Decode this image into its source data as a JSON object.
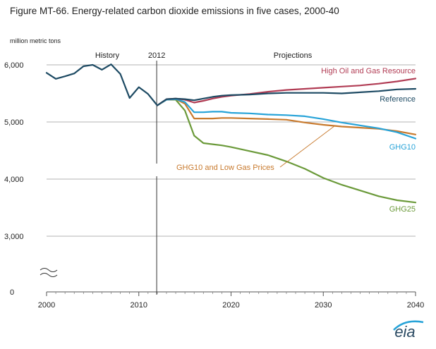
{
  "title": "Figure MT-66. Energy-related carbon dioxide emissions in five cases, 2000-40",
  "logo_text": "eia",
  "chart_data": {
    "type": "line",
    "ylabel": "million metric tons",
    "xlim": [
      2000,
      2040
    ],
    "ylim": [
      0,
      6000
    ],
    "x_ticks": [
      2000,
      2010,
      2020,
      2030,
      2040
    ],
    "y_ticks": [
      0,
      3000,
      4000,
      5000,
      6000
    ],
    "y_tick_labels": [
      "0",
      "3,000",
      "4,000",
      "5,000",
      "6,000"
    ],
    "grid": "horizontal",
    "axis_break": true,
    "divider_year": 2012,
    "divider_label": "2012",
    "section_labels": {
      "history": "History",
      "projections": "Projections"
    },
    "history": {
      "color": "#1d4a63",
      "x": [
        2000,
        2001,
        2002,
        2003,
        2004,
        2005,
        2006,
        2007,
        2008,
        2009,
        2010,
        2011,
        2012
      ],
      "y": [
        5860,
        5755,
        5800,
        5850,
        5975,
        6000,
        5915,
        6010,
        5840,
        5420,
        5610,
        5490,
        5290
      ]
    },
    "series": [
      {
        "name": "High Oil and Gas Resource",
        "color": "#b13c54",
        "x": [
          2012,
          2013,
          2014,
          2015,
          2016,
          2017,
          2018,
          2019,
          2020,
          2022,
          2024,
          2026,
          2028,
          2030,
          2032,
          2034,
          2036,
          2038,
          2040
        ],
        "y": [
          5290,
          5400,
          5410,
          5390,
          5340,
          5370,
          5410,
          5440,
          5460,
          5490,
          5530,
          5560,
          5580,
          5600,
          5620,
          5640,
          5670,
          5710,
          5760
        ]
      },
      {
        "name": "Reference",
        "color": "#1d4a63",
        "x": [
          2012,
          2013,
          2014,
          2015,
          2016,
          2017,
          2018,
          2019,
          2020,
          2022,
          2024,
          2026,
          2028,
          2030,
          2032,
          2034,
          2036,
          2038,
          2040
        ],
        "y": [
          5290,
          5400,
          5410,
          5400,
          5380,
          5410,
          5440,
          5460,
          5470,
          5480,
          5500,
          5510,
          5510,
          5510,
          5500,
          5520,
          5540,
          5570,
          5580
        ]
      },
      {
        "name": "GHG10",
        "color": "#27a3d8",
        "x": [
          2012,
          2013,
          2014,
          2015,
          2016,
          2017,
          2018,
          2019,
          2020,
          2022,
          2024,
          2026,
          2028,
          2030,
          2032,
          2034,
          2036,
          2038,
          2040
        ],
        "y": [
          5290,
          5390,
          5400,
          5350,
          5170,
          5170,
          5180,
          5180,
          5160,
          5150,
          5130,
          5120,
          5100,
          5050,
          4990,
          4940,
          4890,
          4820,
          4710
        ]
      },
      {
        "name": "GHG10 and Low Gas Prices",
        "color": "#c87a2e",
        "x": [
          2012,
          2013,
          2014,
          2015,
          2016,
          2017,
          2018,
          2019,
          2020,
          2022,
          2024,
          2026,
          2028,
          2030,
          2032,
          2034,
          2036,
          2038,
          2040
        ],
        "y": [
          5290,
          5390,
          5400,
          5320,
          5060,
          5060,
          5060,
          5070,
          5070,
          5060,
          5050,
          5040,
          4990,
          4950,
          4920,
          4900,
          4880,
          4840,
          4780
        ]
      },
      {
        "name": "GHG25",
        "color": "#6b9a3a",
        "x": [
          2012,
          2013,
          2014,
          2015,
          2016,
          2017,
          2018,
          2019,
          2020,
          2022,
          2024,
          2026,
          2028,
          2030,
          2032,
          2034,
          2036,
          2038,
          2040
        ],
        "y": [
          5290,
          5390,
          5390,
          5200,
          4760,
          4630,
          4610,
          4590,
          4560,
          4490,
          4420,
          4310,
          4180,
          4020,
          3900,
          3800,
          3700,
          3630,
          3590
        ]
      }
    ]
  }
}
